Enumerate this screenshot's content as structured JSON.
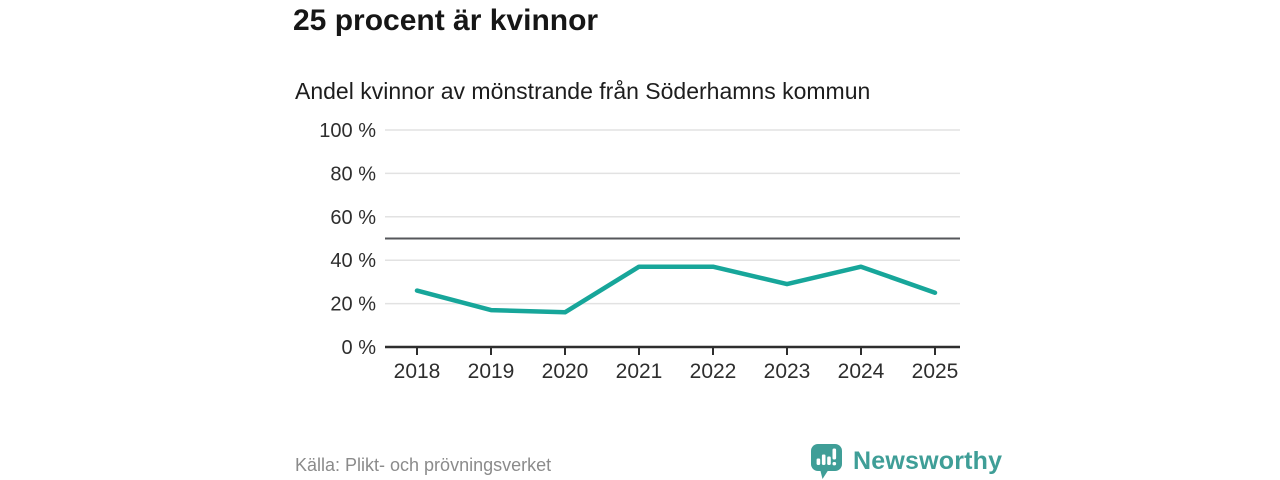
{
  "header": {
    "title": "25 procent är kvinnor",
    "subtitle": "Andel kvinnor av mönstrande från Söderhamns kommun"
  },
  "footer": {
    "source": "Källa: Plikt- och prövningsverket",
    "brand": {
      "name": "Newsworthy",
      "icon": "bar-chart-speech-bubble-icon",
      "color": "#3f9e97"
    }
  },
  "chart_data": {
    "type": "line",
    "title": "25 procent är kvinnor",
    "subtitle": "Andel kvinnor av mönstrande från Söderhamns kommun",
    "x": [
      "2018",
      "2019",
      "2020",
      "2021",
      "2022",
      "2023",
      "2024",
      "2025"
    ],
    "series": [
      {
        "name": "Andel kvinnor av mönstrande",
        "values": [
          26,
          17,
          16,
          37,
          37,
          29,
          37,
          25
        ]
      }
    ],
    "unit": "%",
    "ylim": [
      0,
      100
    ],
    "yticks": [
      0,
      20,
      40,
      60,
      80,
      100
    ],
    "ytick_suffix": " %",
    "xlabel": "",
    "ylabel": "",
    "reference_line": 50,
    "grid": true,
    "legend": "none",
    "colors": {
      "line": "#17a69a",
      "reference": "#56575b",
      "grid": "#e2e2e2",
      "axis": "#2e2e2e",
      "text": "#2e2e2e"
    }
  }
}
